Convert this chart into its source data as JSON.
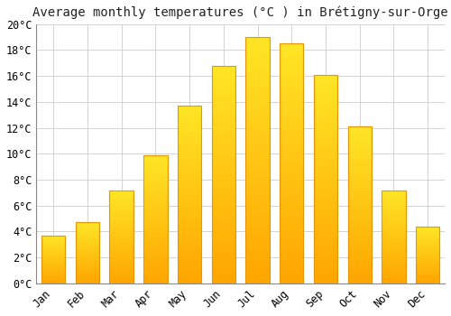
{
  "title": "Average monthly temperatures (°C ) in Brétigny-sur-Orge",
  "categories": [
    "Jan",
    "Feb",
    "Mar",
    "Apr",
    "May",
    "Jun",
    "Jul",
    "Aug",
    "Sep",
    "Oct",
    "Nov",
    "Dec"
  ],
  "values": [
    3.7,
    4.7,
    7.2,
    9.9,
    13.7,
    16.8,
    19.0,
    18.5,
    16.1,
    12.1,
    7.2,
    4.4
  ],
  "bar_color_bottom": "#FFA500",
  "bar_color_top": "#FFD700",
  "bar_edge_color": "#E8950A",
  "background_color": "#FFFFFF",
  "plot_bg_color": "#FFFFFF",
  "grid_color": "#CCCCCC",
  "ylim": [
    0,
    20
  ],
  "ytick_step": 2,
  "title_fontsize": 10,
  "tick_fontsize": 8.5,
  "xlabel": "",
  "ylabel": ""
}
